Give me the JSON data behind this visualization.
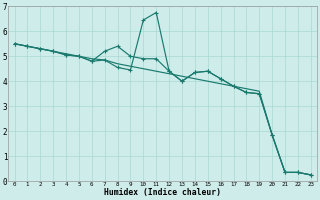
{
  "xlabel": "Humidex (Indice chaleur)",
  "bg_color": "#ceecea",
  "line_color": "#1a7a6e",
  "grid_color": "#a8d8d4",
  "xlim": [
    -0.5,
    23.5
  ],
  "ylim": [
    0,
    7
  ],
  "xtick_labels": [
    "0",
    "1",
    "2",
    "3",
    "4",
    "5",
    "6",
    "7",
    "8",
    "9",
    "10",
    "11",
    "12",
    "13",
    "14",
    "15",
    "16",
    "17",
    "18",
    "19",
    "20",
    "21",
    "22",
    "23"
  ],
  "ytick_labels": [
    "0",
    "1",
    "2",
    "3",
    "4",
    "5",
    "6",
    "7"
  ],
  "line1_x": [
    0,
    1,
    2,
    3,
    4,
    5,
    6,
    7,
    8,
    9,
    10,
    11,
    12,
    13,
    14,
    15,
    16,
    17,
    18,
    19,
    20,
    21,
    22,
    23
  ],
  "line1_y": [
    5.5,
    5.4,
    5.3,
    5.2,
    5.1,
    5.0,
    4.9,
    4.85,
    4.7,
    4.6,
    4.5,
    4.4,
    4.3,
    4.2,
    4.1,
    4.0,
    3.9,
    3.8,
    3.7,
    3.6,
    1.85,
    0.35,
    0.35,
    0.25
  ],
  "line2_x": [
    0,
    1,
    2,
    3,
    4,
    5,
    6,
    7,
    8,
    9,
    10,
    11,
    12,
    13,
    14,
    15,
    16,
    17,
    18,
    19,
    20,
    21,
    22,
    23
  ],
  "line2_y": [
    5.5,
    5.4,
    5.3,
    5.2,
    5.05,
    5.0,
    4.8,
    4.85,
    4.55,
    4.45,
    6.45,
    6.75,
    4.4,
    4.0,
    4.35,
    4.4,
    4.1,
    3.8,
    3.55,
    3.5,
    1.85,
    0.35,
    0.35,
    0.25
  ],
  "line3_x": [
    0,
    1,
    2,
    3,
    4,
    5,
    6,
    7,
    8,
    9,
    10,
    11,
    12,
    13,
    14,
    15,
    16,
    17,
    18,
    19,
    20,
    21,
    22,
    23
  ],
  "line3_y": [
    5.5,
    5.4,
    5.3,
    5.2,
    5.05,
    5.0,
    4.8,
    5.2,
    5.4,
    5.0,
    4.9,
    4.9,
    4.4,
    4.0,
    4.35,
    4.4,
    4.1,
    3.8,
    3.55,
    3.5,
    1.85,
    0.35,
    0.35,
    0.25
  ]
}
